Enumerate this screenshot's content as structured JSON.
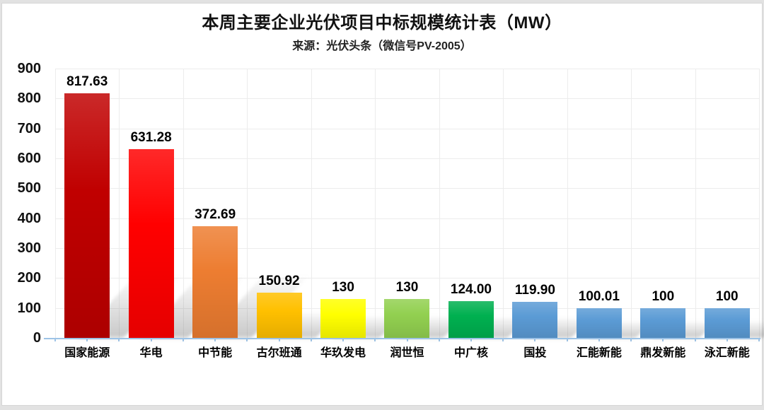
{
  "header": {
    "title": "本周主要企业光伏项目中标规模统计表（MW）",
    "subtitle": "来源：光伏头条（微信号PV-2005）"
  },
  "chart_data": {
    "type": "bar",
    "title": "本周主要企业光伏项目中标规模统计表（MW）",
    "subtitle": "来源：光伏头条（微信号PV-2005）",
    "categories": [
      "国家能源",
      "华电",
      "中节能",
      "古尔班通",
      "华玖发电",
      "润世恒",
      "中广核",
      "国投",
      "汇能新能",
      "鼎发新能",
      "泳汇新能"
    ],
    "values": [
      817.63,
      631.28,
      372.69,
      150.92,
      130,
      130,
      124.0,
      119.9,
      100.01,
      100,
      100
    ],
    "value_labels": [
      "817.63",
      "631.28",
      "372.69",
      "150.92",
      "130",
      "130",
      "124.00",
      "119.90",
      "100.01",
      "100",
      "100"
    ],
    "bar_colors": [
      "#c00000",
      "#ff0000",
      "#ed7d31",
      "#ffc000",
      "#ffff00",
      "#92d050",
      "#00b050",
      "#5b9bd5",
      "#5b9bd5",
      "#5b9bd5",
      "#5b9bd5"
    ],
    "xlabel": "",
    "ylabel": "",
    "ylim": [
      0,
      900
    ],
    "ytick_step": 100,
    "yticks": [
      900,
      800,
      700,
      600,
      500,
      400,
      300,
      200,
      100,
      0
    ],
    "grid": true,
    "legend": false,
    "axis_color": "#9dc3e6",
    "gridline_color": "#ececec"
  }
}
